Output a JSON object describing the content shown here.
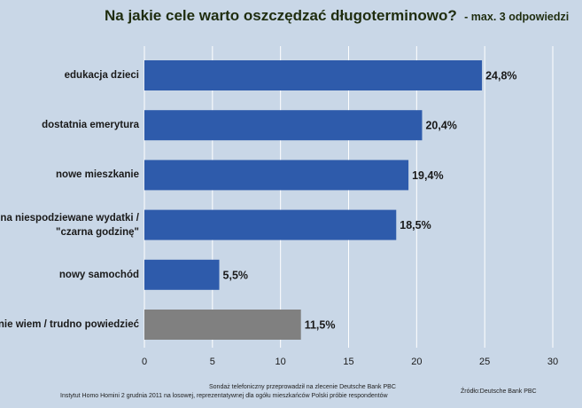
{
  "title": {
    "main": "Na jakie cele warto oszczędzać długoterminowo?",
    "sub": "- max. 3 odpowiedzi"
  },
  "colors": {
    "bar": "#2e5bab",
    "bar_highlight": "#808080",
    "grid": "#ffffff",
    "background": "#c9d7e7"
  },
  "chart_data": {
    "type": "bar",
    "orientation": "horizontal",
    "categories": [
      "edukacja dzieci",
      "dostatnia emerytura",
      "nowe mieszkanie",
      "na niespodziewane wydatki / \"czarna godzinę\"",
      "nowy samochód",
      "nie wiem / trudno powiedzieć"
    ],
    "values": [
      24.8,
      20.4,
      19.4,
      18.5,
      5.5,
      11.5
    ],
    "value_labels": [
      "24,8%",
      "20,4%",
      "19,4%",
      "18,5%",
      "5,5%",
      "11,5%"
    ],
    "bar_colors": [
      "#2e5bab",
      "#2e5bab",
      "#2e5bab",
      "#2e5bab",
      "#2e5bab",
      "#808080"
    ],
    "xlim": [
      0,
      30
    ],
    "xticks": [
      0,
      5,
      10,
      15,
      20,
      25,
      30
    ],
    "grid": true,
    "xlabel": "",
    "ylabel": ""
  },
  "footer": {
    "line1": "Sondaż telefoniczny przeprowadził na zlecenie Deutsche Bank PBC",
    "line2": "Instytut Homo Homini 2 grudnia 2011 na losowej, reprezentatywnej dla ogółu mieszkańców Polski próbie respondentów",
    "source": "Źródło:Deutsche Bank PBC"
  }
}
